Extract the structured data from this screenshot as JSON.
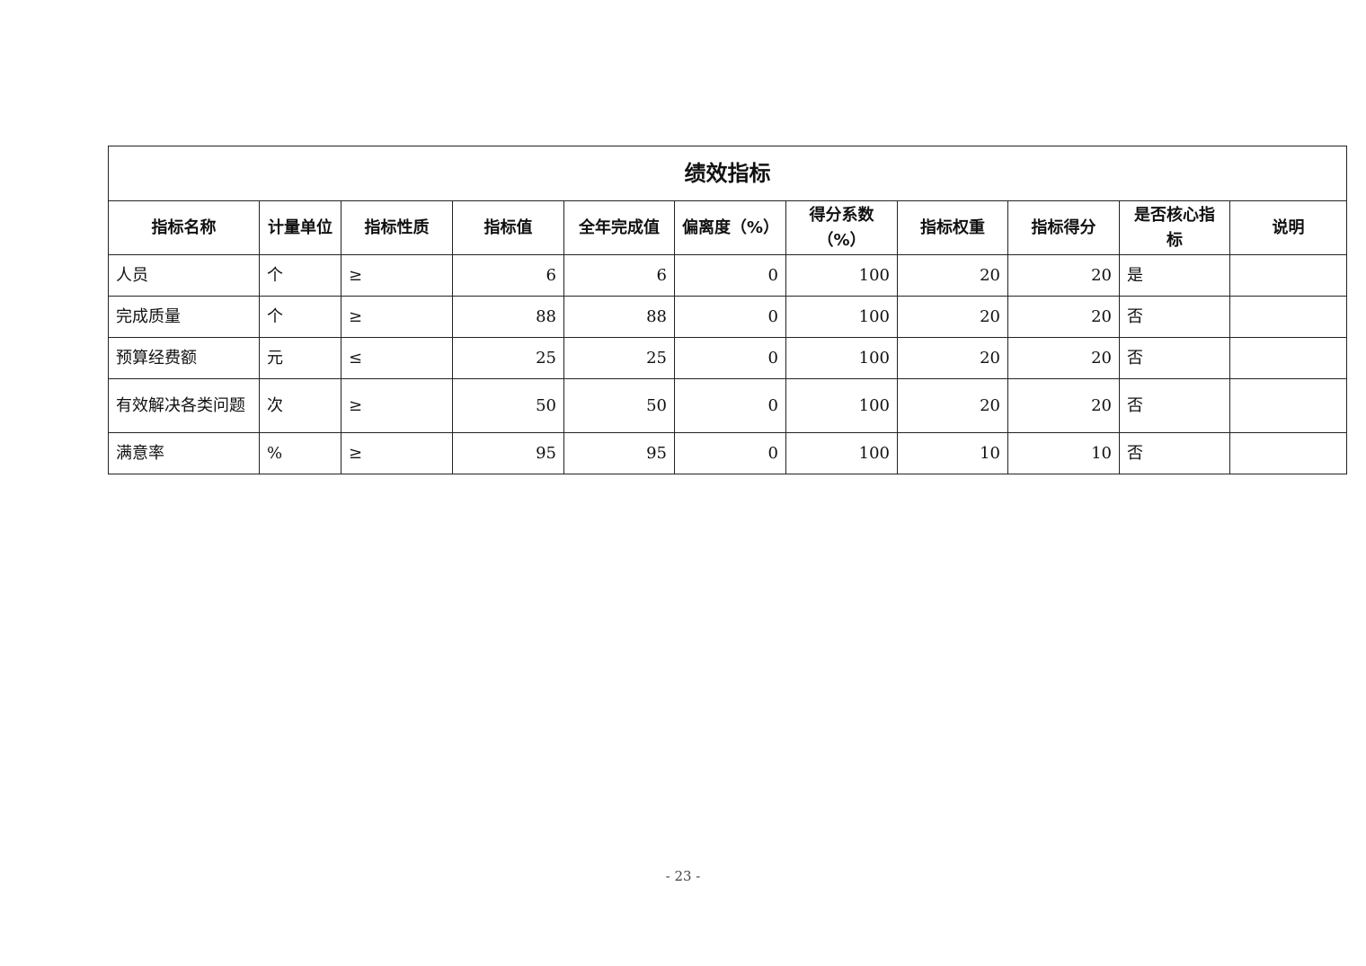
{
  "table": {
    "title": "绩效指标",
    "headers": [
      "指标名称",
      "计量单位",
      "指标性质",
      "指标值",
      "全年完成值",
      "偏离度（%）",
      "得分系数（%）",
      "指标权重",
      "指标得分",
      "是否核心指标",
      "说明"
    ],
    "rows": [
      [
        "人员",
        "个",
        "≥",
        "6",
        "6",
        "0",
        "100",
        "20",
        "20",
        "是",
        ""
      ],
      [
        "完成质量",
        "个",
        "≥",
        "88",
        "88",
        "0",
        "100",
        "20",
        "20",
        "否",
        ""
      ],
      [
        "预算经费额",
        "元",
        "≤",
        "25",
        "25",
        "0",
        "100",
        "20",
        "20",
        "否",
        ""
      ],
      [
        "有效解决各类问题",
        "次",
        "≥",
        "50",
        "50",
        "0",
        "100",
        "20",
        "20",
        "否",
        ""
      ],
      [
        "满意率",
        "%",
        "≥",
        "95",
        "95",
        "0",
        "100",
        "10",
        "10",
        "否",
        ""
      ]
    ]
  },
  "footer": {
    "page": "- 23 -"
  }
}
